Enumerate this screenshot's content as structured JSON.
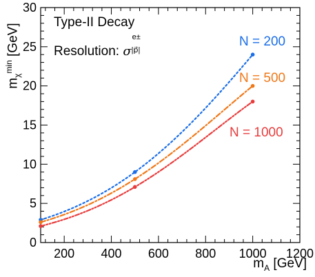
{
  "chart_data": {
    "type": "line",
    "xlabel": "m_A [GeV]",
    "ylabel": "m_χ^min [GeV]",
    "xlim": [
      100,
      1200
    ],
    "ylim": [
      0,
      30
    ],
    "x_ticks": [
      "200",
      "400",
      "600",
      "800",
      "1000",
      "1200"
    ],
    "y_ticks": [
      "0",
      "5",
      "10",
      "15",
      "20",
      "25",
      "30"
    ],
    "annotations": [
      "Type-II Decay",
      "Resolution:",
      "σ",
      "e±",
      "|p⃗|"
    ],
    "grid": false,
    "series": [
      {
        "name": "N = 200",
        "color": "#1a6ee8",
        "dash": "dotted",
        "x": [
          100,
          500,
          1000
        ],
        "y": [
          2.9,
          9.0,
          24.0
        ]
      },
      {
        "name": "N = 500",
        "color": "#f07818",
        "dash": "dash-dot",
        "x": [
          100,
          500,
          1000
        ],
        "y": [
          2.6,
          8.1,
          20.0
        ]
      },
      {
        "name": "N = 1000",
        "color": "#e83c3c",
        "dash": "dash-dot-dot",
        "x": [
          100,
          500,
          1000
        ],
        "y": [
          2.1,
          7.1,
          18.0
        ]
      }
    ]
  }
}
